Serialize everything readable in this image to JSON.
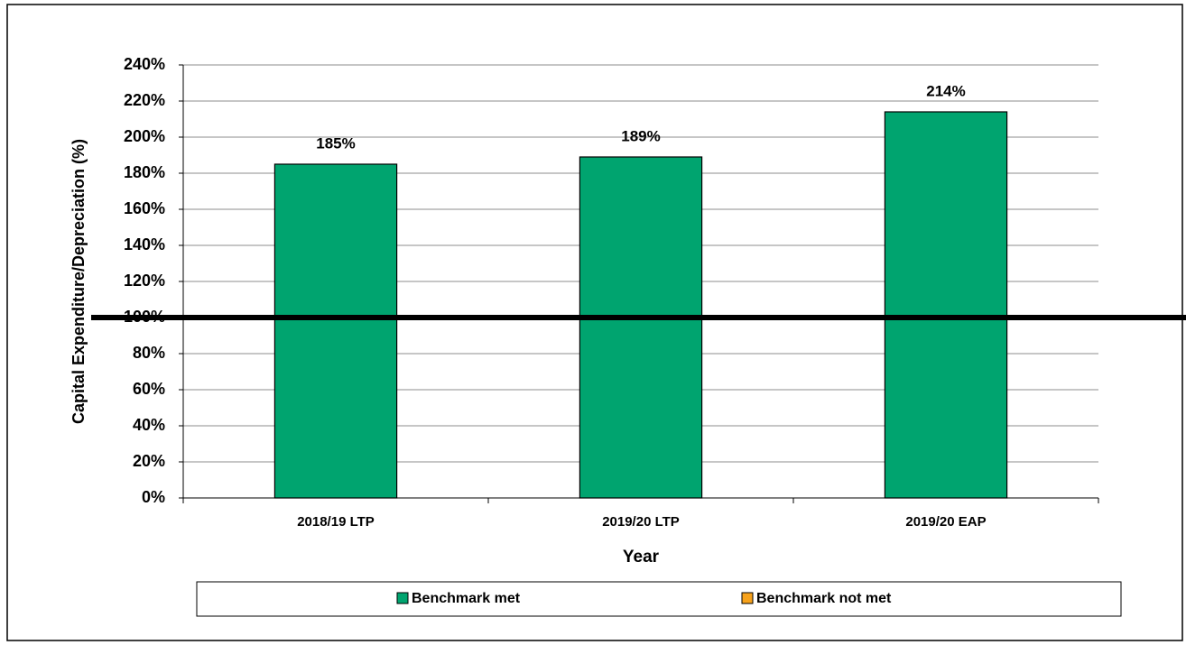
{
  "chart_data": {
    "type": "bar",
    "categories": [
      "2018/19 LTP",
      "2019/20 LTP",
      "2019/20 EAP"
    ],
    "series": [
      {
        "name": "Benchmark met",
        "color": "#00a46f",
        "values": [
          185,
          189,
          214
        ],
        "value_labels": [
          "185%",
          "189%",
          "214%"
        ]
      },
      {
        "name": "Benchmark not met",
        "color": "#f7a21b",
        "values": [
          null,
          null,
          null
        ]
      }
    ],
    "benchmark": 100,
    "ylim": [
      0,
      240
    ],
    "yticks": [
      {
        "value": 0,
        "label": "0%"
      },
      {
        "value": 20,
        "label": "20%"
      },
      {
        "value": 40,
        "label": "40%"
      },
      {
        "value": 60,
        "label": "60%"
      },
      {
        "value": 80,
        "label": "80%"
      },
      {
        "value": 100,
        "label": "100%"
      },
      {
        "value": 120,
        "label": "120%"
      },
      {
        "value": 140,
        "label": "140%"
      },
      {
        "value": 160,
        "label": "160%"
      },
      {
        "value": 180,
        "label": "180%"
      },
      {
        "value": 200,
        "label": "200%"
      },
      {
        "value": 220,
        "label": "220%"
      },
      {
        "value": 240,
        "label": "240%"
      }
    ],
    "xlabel": "Year",
    "ylabel": "Capital Expenditure/Depreciation (%)",
    "grid": true
  }
}
